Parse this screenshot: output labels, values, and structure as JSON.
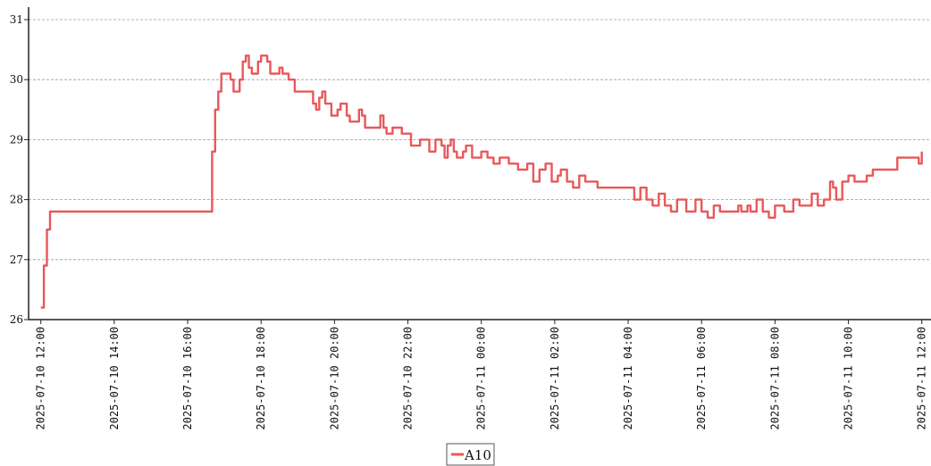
{
  "chart_data": {
    "type": "line",
    "title": "",
    "xlabel": "",
    "ylabel": "",
    "ylim": [
      26,
      31
    ],
    "xlim": [
      "2025-07-10 11:40",
      "2025-07-11 12:15"
    ],
    "grid": "horizontal-dashed",
    "legend_position": "bottom-center",
    "y_ticks": [
      "26",
      "27",
      "28",
      "29",
      "30",
      "31"
    ],
    "x_ticks": [
      "2025-07-10 12:00",
      "2025-07-10 14:00",
      "2025-07-10 16:00",
      "2025-07-10 18:00",
      "2025-07-10 20:00",
      "2025-07-10 22:00",
      "2025-07-11 00:00",
      "2025-07-11 02:00",
      "2025-07-11 04:00",
      "2025-07-11 06:00",
      "2025-07-11 08:00",
      "2025-07-11 10:00",
      "2025-07-11 12:00"
    ],
    "series": [
      {
        "name": "A10",
        "color": "#e8585a",
        "points": [
          [
            "2025-07-10 12:00",
            26.2
          ],
          [
            "2025-07-10 12:05",
            26.9
          ],
          [
            "2025-07-10 12:10",
            27.5
          ],
          [
            "2025-07-10 12:15",
            27.8
          ],
          [
            "2025-07-10 13:00",
            27.8
          ],
          [
            "2025-07-10 14:00",
            27.8
          ],
          [
            "2025-07-10 15:00",
            27.8
          ],
          [
            "2025-07-10 16:00",
            27.8
          ],
          [
            "2025-07-10 16:35",
            27.8
          ],
          [
            "2025-07-10 16:40",
            28.8
          ],
          [
            "2025-07-10 16:45",
            29.5
          ],
          [
            "2025-07-10 16:50",
            29.8
          ],
          [
            "2025-07-10 16:55",
            30.1
          ],
          [
            "2025-07-10 17:05",
            30.1
          ],
          [
            "2025-07-10 17:10",
            30.0
          ],
          [
            "2025-07-10 17:15",
            29.8
          ],
          [
            "2025-07-10 17:25",
            30.0
          ],
          [
            "2025-07-10 17:30",
            30.3
          ],
          [
            "2025-07-10 17:35",
            30.4
          ],
          [
            "2025-07-10 17:40",
            30.2
          ],
          [
            "2025-07-10 17:45",
            30.1
          ],
          [
            "2025-07-10 17:55",
            30.3
          ],
          [
            "2025-07-10 18:00",
            30.4
          ],
          [
            "2025-07-10 18:10",
            30.3
          ],
          [
            "2025-07-10 18:15",
            30.1
          ],
          [
            "2025-07-10 18:30",
            30.2
          ],
          [
            "2025-07-10 18:35",
            30.1
          ],
          [
            "2025-07-10 18:45",
            30.0
          ],
          [
            "2025-07-10 18:55",
            29.8
          ],
          [
            "2025-07-10 19:20",
            29.8
          ],
          [
            "2025-07-10 19:25",
            29.6
          ],
          [
            "2025-07-10 19:30",
            29.5
          ],
          [
            "2025-07-10 19:35",
            29.7
          ],
          [
            "2025-07-10 19:40",
            29.8
          ],
          [
            "2025-07-10 19:45",
            29.6
          ],
          [
            "2025-07-10 19:55",
            29.4
          ],
          [
            "2025-07-10 20:05",
            29.5
          ],
          [
            "2025-07-10 20:10",
            29.6
          ],
          [
            "2025-07-10 20:20",
            29.4
          ],
          [
            "2025-07-10 20:25",
            29.3
          ],
          [
            "2025-07-10 20:40",
            29.5
          ],
          [
            "2025-07-10 20:45",
            29.4
          ],
          [
            "2025-07-10 20:50",
            29.2
          ],
          [
            "2025-07-10 21:10",
            29.2
          ],
          [
            "2025-07-10 21:15",
            29.4
          ],
          [
            "2025-07-10 21:20",
            29.2
          ],
          [
            "2025-07-10 21:25",
            29.1
          ],
          [
            "2025-07-10 21:35",
            29.2
          ],
          [
            "2025-07-10 21:50",
            29.1
          ],
          [
            "2025-07-10 22:00",
            29.1
          ],
          [
            "2025-07-10 22:05",
            28.9
          ],
          [
            "2025-07-10 22:20",
            29.0
          ],
          [
            "2025-07-10 22:35",
            28.8
          ],
          [
            "2025-07-10 22:45",
            29.0
          ],
          [
            "2025-07-10 22:55",
            28.9
          ],
          [
            "2025-07-10 23:00",
            28.7
          ],
          [
            "2025-07-10 23:05",
            28.9
          ],
          [
            "2025-07-10 23:10",
            29.0
          ],
          [
            "2025-07-10 23:15",
            28.8
          ],
          [
            "2025-07-10 23:20",
            28.7
          ],
          [
            "2025-07-10 23:30",
            28.8
          ],
          [
            "2025-07-10 23:35",
            28.9
          ],
          [
            "2025-07-10 23:45",
            28.7
          ],
          [
            "2025-07-11 00:00",
            28.8
          ],
          [
            "2025-07-11 00:10",
            28.7
          ],
          [
            "2025-07-11 00:20",
            28.6
          ],
          [
            "2025-07-11 00:30",
            28.7
          ],
          [
            "2025-07-11 00:45",
            28.6
          ],
          [
            "2025-07-11 01:00",
            28.5
          ],
          [
            "2025-07-11 01:15",
            28.6
          ],
          [
            "2025-07-11 01:25",
            28.3
          ],
          [
            "2025-07-11 01:35",
            28.5
          ],
          [
            "2025-07-11 01:45",
            28.6
          ],
          [
            "2025-07-11 01:55",
            28.3
          ],
          [
            "2025-07-11 02:05",
            28.4
          ],
          [
            "2025-07-11 02:10",
            28.5
          ],
          [
            "2025-07-11 02:20",
            28.3
          ],
          [
            "2025-07-11 02:30",
            28.2
          ],
          [
            "2025-07-11 02:40",
            28.4
          ],
          [
            "2025-07-11 02:50",
            28.3
          ],
          [
            "2025-07-11 03:00",
            28.3
          ],
          [
            "2025-07-11 03:10",
            28.2
          ],
          [
            "2025-07-11 04:00",
            28.2
          ],
          [
            "2025-07-11 04:10",
            28.0
          ],
          [
            "2025-07-11 04:20",
            28.2
          ],
          [
            "2025-07-11 04:30",
            28.0
          ],
          [
            "2025-07-11 04:40",
            27.9
          ],
          [
            "2025-07-11 04:50",
            28.1
          ],
          [
            "2025-07-11 05:00",
            27.9
          ],
          [
            "2025-07-11 05:10",
            27.8
          ],
          [
            "2025-07-11 05:20",
            28.0
          ],
          [
            "2025-07-11 05:35",
            27.8
          ],
          [
            "2025-07-11 05:50",
            28.0
          ],
          [
            "2025-07-11 06:00",
            27.8
          ],
          [
            "2025-07-11 06:10",
            27.7
          ],
          [
            "2025-07-11 06:20",
            27.9
          ],
          [
            "2025-07-11 06:30",
            27.8
          ],
          [
            "2025-07-11 06:45",
            27.8
          ],
          [
            "2025-07-11 07:00",
            27.9
          ],
          [
            "2025-07-11 07:05",
            27.8
          ],
          [
            "2025-07-11 07:15",
            27.9
          ],
          [
            "2025-07-11 07:20",
            27.8
          ],
          [
            "2025-07-11 07:30",
            28.0
          ],
          [
            "2025-07-11 07:40",
            27.8
          ],
          [
            "2025-07-11 07:50",
            27.7
          ],
          [
            "2025-07-11 08:00",
            27.9
          ],
          [
            "2025-07-11 08:15",
            27.8
          ],
          [
            "2025-07-11 08:30",
            28.0
          ],
          [
            "2025-07-11 08:40",
            27.9
          ],
          [
            "2025-07-11 08:50",
            27.9
          ],
          [
            "2025-07-11 09:00",
            28.1
          ],
          [
            "2025-07-11 09:10",
            27.9
          ],
          [
            "2025-07-11 09:20",
            28.0
          ],
          [
            "2025-07-11 09:30",
            28.3
          ],
          [
            "2025-07-11 09:35",
            28.2
          ],
          [
            "2025-07-11 09:40",
            28.0
          ],
          [
            "2025-07-11 09:50",
            28.3
          ],
          [
            "2025-07-11 10:00",
            28.4
          ],
          [
            "2025-07-11 10:10",
            28.3
          ],
          [
            "2025-07-11 10:30",
            28.4
          ],
          [
            "2025-07-11 10:40",
            28.5
          ],
          [
            "2025-07-11 11:10",
            28.5
          ],
          [
            "2025-07-11 11:20",
            28.7
          ],
          [
            "2025-07-11 11:50",
            28.7
          ],
          [
            "2025-07-11 11:55",
            28.6
          ],
          [
            "2025-07-11 12:00",
            28.8
          ]
        ]
      }
    ]
  }
}
